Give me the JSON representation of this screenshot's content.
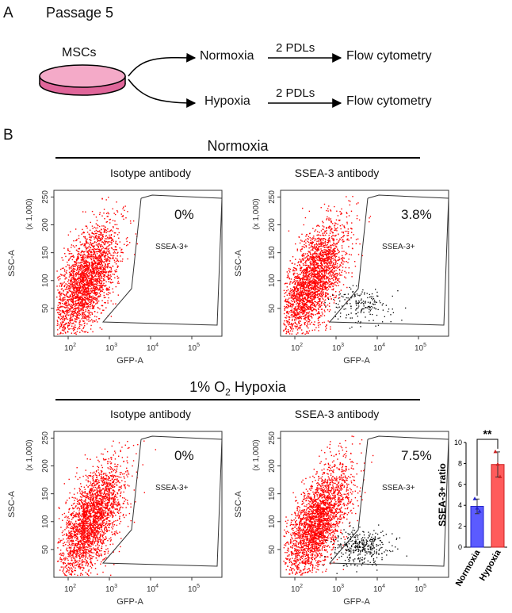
{
  "panel_a": {
    "letter": "A",
    "title": "Passage 5",
    "source": "MSCs",
    "arm1_condition": "Normoxia",
    "arm2_condition": "Hypoxia",
    "arrow_label": "2 PDLs",
    "endpoint": "Flow cytometry"
  },
  "panel_b": {
    "letter": "B",
    "row1_title": "Normoxia",
    "row2_title_prefix": "1% O",
    "row2_title_sub": "2",
    "row2_title_suffix": " Hypoxia",
    "col1_title": "Isotype antibody",
    "col2_title": "SSEA-3 antibody"
  },
  "flow_plots": {
    "x_axis_title": "GFP-A",
    "y_axis_title": "SSC-A",
    "y_multiplier": "(x 1,000)",
    "y_ticks": [
      "50",
      "100",
      "150",
      "200",
      "250"
    ],
    "x_ticks": [
      "10",
      "10",
      "10",
      "10"
    ],
    "x_tick_exps": [
      "2",
      "3",
      "4",
      "5"
    ],
    "gate_label": "SSEA-3+",
    "colors": {
      "population": "#ff0000",
      "gated": "#000000"
    },
    "plots": [
      {
        "percent": "0%"
      },
      {
        "percent": "3.8%"
      },
      {
        "percent": "0%"
      },
      {
        "percent": "7.5%"
      }
    ]
  },
  "chart_data": {
    "type": "bar",
    "categories": [
      "Normoxia",
      "Hypoxia"
    ],
    "values": [
      3.9,
      7.9
    ],
    "errors": [
      0.7,
      1.2
    ],
    "points": [
      [
        4.6,
        3.7,
        3.4
      ],
      [
        9.1,
        7.9,
        6.7
      ]
    ],
    "colors": [
      "#5b5bff",
      "#ff5b5b"
    ],
    "ylabel": "SSEA-3+ ratio",
    "ylim": [
      0,
      10
    ],
    "yticks": [
      0,
      2,
      4,
      6,
      8,
      10
    ],
    "significance": "**"
  }
}
